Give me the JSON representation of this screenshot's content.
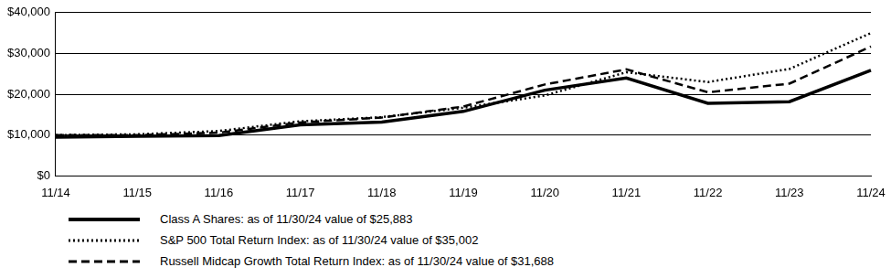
{
  "chart_data": {
    "type": "line",
    "categories": [
      "11/14",
      "11/15",
      "11/16",
      "11/17",
      "11/18",
      "11/19",
      "11/20",
      "11/21",
      "11/22",
      "11/23",
      "11/24"
    ],
    "series": [
      {
        "name": "Class A Shares: as of 11/30/24 value of $25,883",
        "color": "#000000",
        "line_style": "solid",
        "values": [
          9500,
          9700,
          9900,
          12500,
          13200,
          15800,
          21000,
          24000,
          17800,
          18200,
          25883
        ]
      },
      {
        "name": "S&P 500 Total Return Index: as of 11/30/24 value of $35,002",
        "color": "#000000",
        "line_style": "dotted",
        "values": [
          10000,
          10200,
          11000,
          13400,
          14400,
          16700,
          19700,
          25400,
          23000,
          26200,
          35002
        ]
      },
      {
        "name": "Russell Midcap Growth Total Return Index: as of 11/30/24 value of $31,688",
        "color": "#000000",
        "line_style": "dashed",
        "values": [
          10000,
          10000,
          10600,
          13100,
          14300,
          17000,
          22400,
          26100,
          20500,
          22600,
          31688
        ]
      }
    ],
    "ylim": [
      0,
      40000
    ],
    "yticks": [
      {
        "value": 0,
        "label": "$0"
      },
      {
        "value": 10000,
        "label": "$10,000"
      },
      {
        "value": 20000,
        "label": "$20,000"
      },
      {
        "value": 30000,
        "label": "$30,000"
      },
      {
        "value": 40000,
        "label": "$40,000"
      }
    ],
    "grid": true,
    "legend": "bottom"
  }
}
